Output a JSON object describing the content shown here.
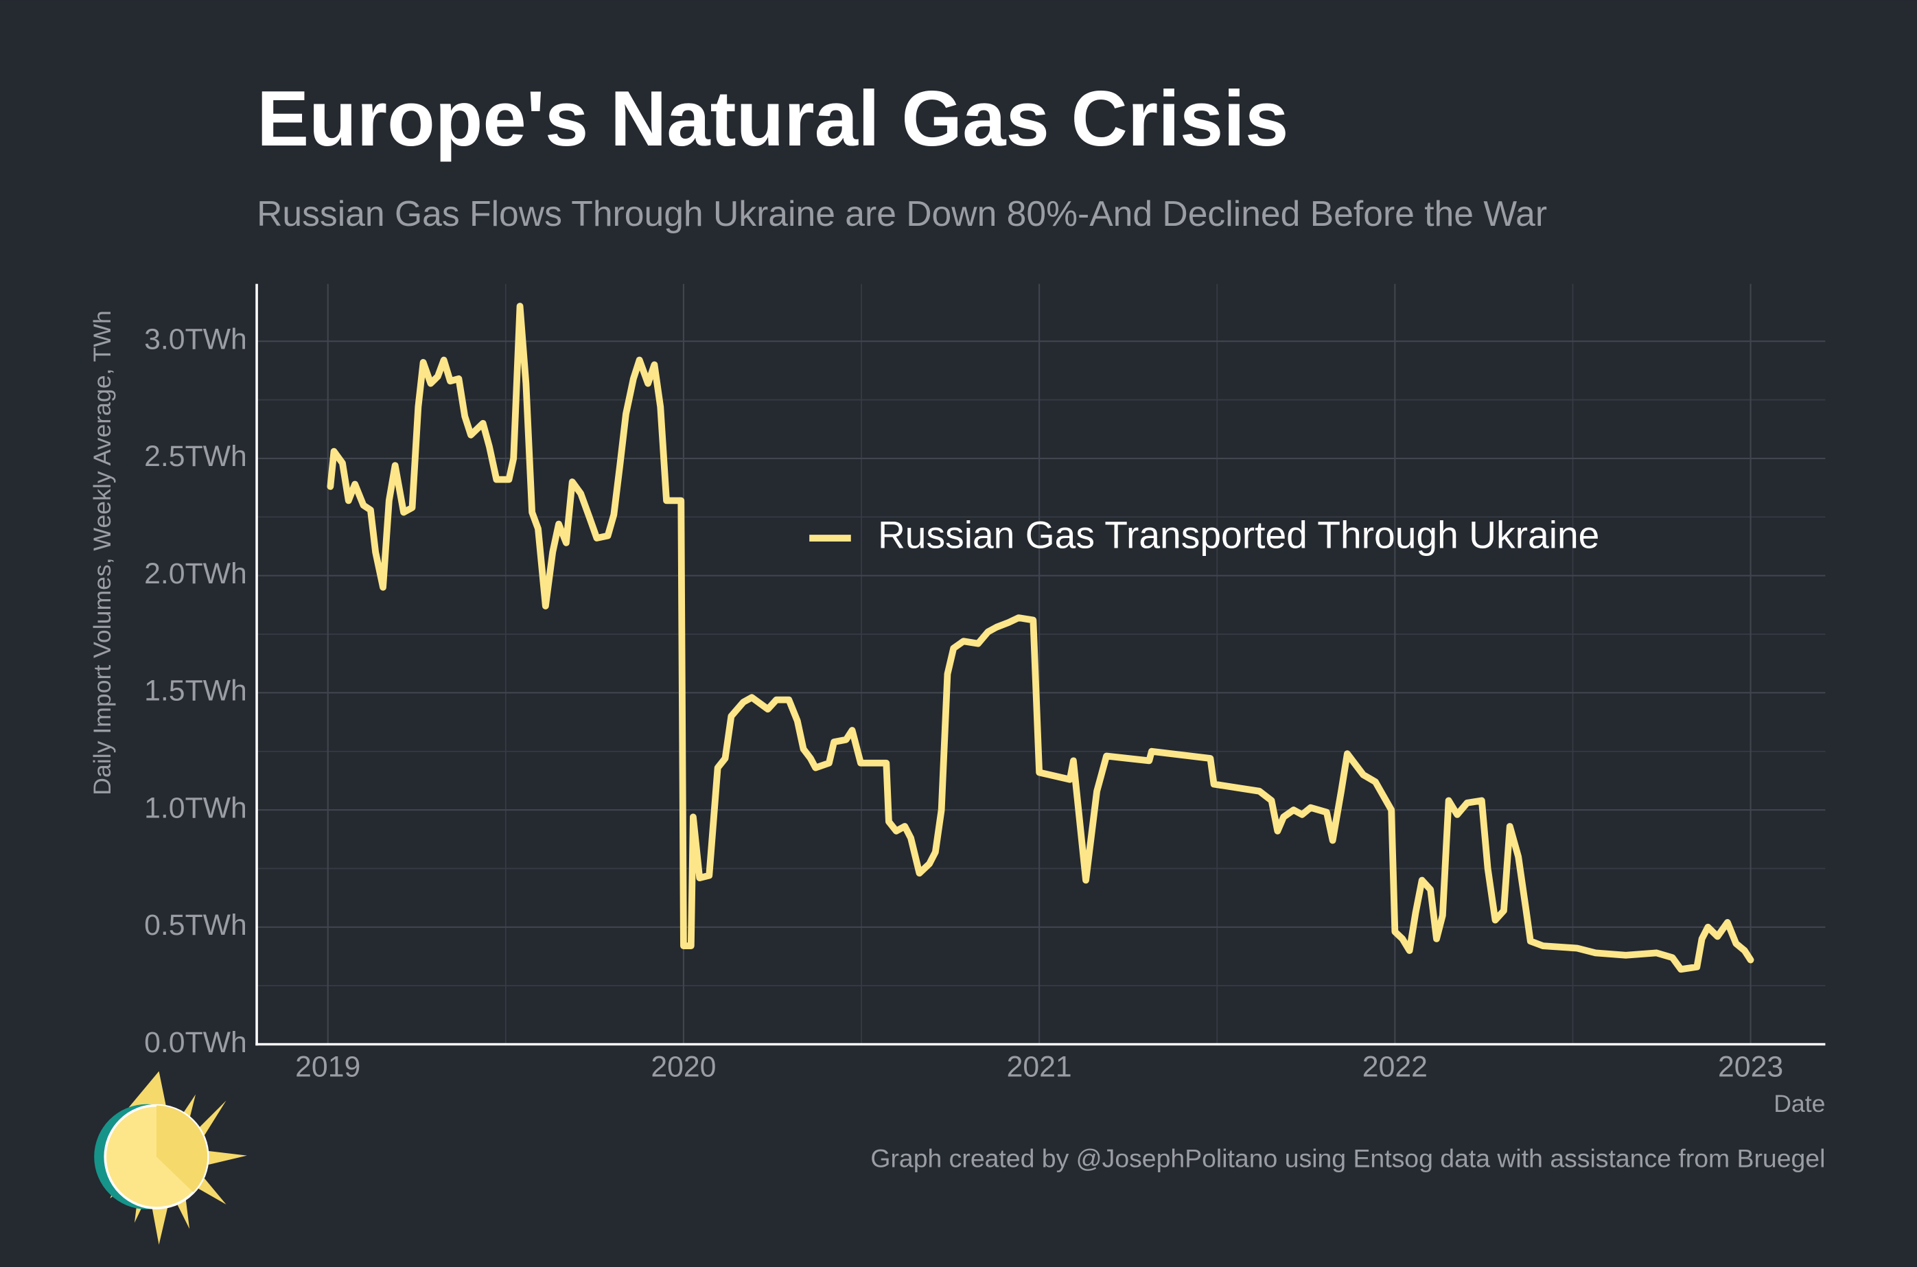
{
  "chart_data": {
    "type": "line",
    "title": "Europe's Natural Gas Crisis",
    "subtitle": "Russian Gas Flows Through Ukraine are Down 80%-And Declined Before the War",
    "x_label": "Date",
    "y_label": "Daily Import Volumes, Weekly Average, TWh",
    "caption": "Graph created by @JosephPolitano using Entsog data with assistance from Bruegel",
    "xlim": [
      2018.8,
      2023.21
    ],
    "xticks": [
      2019,
      2020,
      2021,
      2022,
      2023
    ],
    "xticks_minor": [
      2019.5,
      2020.5,
      2021.5,
      2022.5
    ],
    "ylim": [
      0,
      3.245
    ],
    "yticks": [
      {
        "value": 0,
        "label": "0.0TWh"
      },
      {
        "value": 0.5,
        "label": "0.5TWh"
      },
      {
        "value": 1,
        "label": "1.0TWh"
      },
      {
        "value": 1.5,
        "label": "1.5TWh"
      },
      {
        "value": 2,
        "label": "2.0TWh"
      },
      {
        "value": 2.5,
        "label": "2.5TWh"
      },
      {
        "value": 3,
        "label": "3.0TWh"
      }
    ],
    "yticks_minor": [
      0.25,
      0.75,
      1.25,
      1.75,
      2.25,
      2.75
    ],
    "grid": true,
    "legend_position": "center",
    "x": [
      2019.007,
      2019.017,
      2019.041,
      2019.058,
      2019.076,
      2019.1,
      2019.12,
      2019.134,
      2019.155,
      2019.172,
      2019.189,
      2019.213,
      2019.237,
      2019.254,
      2019.268,
      2019.289,
      2019.309,
      2019.326,
      2019.344,
      2019.368,
      2019.385,
      2019.402,
      2019.436,
      2019.454,
      2019.474,
      2019.509,
      2019.522,
      2019.54,
      2019.557,
      2019.574,
      2019.591,
      2019.612,
      2019.632,
      2019.649,
      2019.67,
      2019.687,
      2019.711,
      2019.735,
      2019.756,
      2019.787,
      2019.804,
      2019.821,
      2019.838,
      2019.859,
      2019.876,
      2019.9,
      2019.918,
      2019.935,
      2019.952,
      2019.993,
      2020.0,
      2020.021,
      2020.027,
      2020.045,
      2020.072,
      2020.096,
      2020.117,
      2020.134,
      2020.168,
      2020.192,
      2020.237,
      2020.261,
      2020.296,
      2020.32,
      2020.337,
      2020.357,
      2020.371,
      2020.409,
      2020.423,
      2020.457,
      2020.474,
      2020.498,
      2020.57,
      2020.577,
      2020.598,
      2020.622,
      2020.639,
      2020.663,
      2020.691,
      2020.708,
      2020.725,
      2020.742,
      2020.759,
      2020.787,
      2020.828,
      2020.856,
      2020.88,
      2020.914,
      2020.942,
      2020.983,
      2021.0,
      2021.086,
      2021.096,
      2021.131,
      2021.162,
      2021.189,
      2021.309,
      2021.316,
      2021.481,
      2021.491,
      2021.619,
      2021.653,
      2021.67,
      2021.687,
      2021.715,
      2021.739,
      2021.763,
      2021.808,
      2021.825,
      2021.849,
      2021.866,
      2021.911,
      2021.945,
      2021.99,
      2022.0,
      2022.021,
      2022.041,
      2022.058,
      2022.076,
      2022.1,
      2022.117,
      2022.134,
      2022.151,
      2022.175,
      2022.203,
      2022.244,
      2022.261,
      2022.282,
      2022.306,
      2022.323,
      2022.347,
      2022.368,
      2022.381,
      2022.416,
      2022.512,
      2022.564,
      2022.649,
      2022.735,
      2022.78,
      2022.804,
      2022.849,
      2022.863,
      2022.88,
      2022.907,
      2022.935,
      2022.959,
      2022.983,
      2023.0
    ],
    "series": [
      {
        "name": "Russian Gas Transported Through Ukraine",
        "color": "#fde68a",
        "values": [
          2.38,
          2.53,
          2.48,
          2.32,
          2.39,
          2.3,
          2.28,
          2.1,
          1.95,
          2.32,
          2.47,
          2.27,
          2.29,
          2.72,
          2.91,
          2.82,
          2.85,
          2.92,
          2.83,
          2.84,
          2.68,
          2.6,
          2.65,
          2.55,
          2.41,
          2.41,
          2.5,
          3.15,
          2.82,
          2.27,
          2.2,
          1.87,
          2.1,
          2.22,
          2.14,
          2.4,
          2.35,
          2.25,
          2.16,
          2.17,
          2.26,
          2.47,
          2.69,
          2.84,
          2.92,
          2.82,
          2.9,
          2.72,
          2.32,
          2.32,
          0.42,
          0.42,
          0.97,
          0.71,
          0.72,
          1.18,
          1.22,
          1.4,
          1.46,
          1.48,
          1.43,
          1.47,
          1.47,
          1.38,
          1.26,
          1.22,
          1.18,
          1.2,
          1.29,
          1.3,
          1.34,
          1.2,
          1.2,
          0.95,
          0.91,
          0.93,
          0.88,
          0.73,
          0.77,
          0.82,
          1.0,
          1.58,
          1.69,
          1.72,
          1.71,
          1.76,
          1.78,
          1.8,
          1.82,
          1.81,
          1.16,
          1.13,
          1.21,
          0.7,
          1.08,
          1.23,
          1.21,
          1.25,
          1.22,
          1.11,
          1.08,
          1.04,
          0.91,
          0.97,
          1.0,
          0.98,
          1.01,
          0.99,
          0.87,
          1.08,
          1.24,
          1.15,
          1.12,
          1.0,
          0.48,
          0.45,
          0.4,
          0.56,
          0.7,
          0.66,
          0.45,
          0.55,
          1.04,
          0.98,
          1.03,
          1.04,
          0.75,
          0.53,
          0.57,
          0.93,
          0.8,
          0.58,
          0.44,
          0.42,
          0.41,
          0.39,
          0.38,
          0.39,
          0.37,
          0.32,
          0.33,
          0.45,
          0.5,
          0.46,
          0.52,
          0.43,
          0.4,
          0.36
        ]
      }
    ]
  }
}
